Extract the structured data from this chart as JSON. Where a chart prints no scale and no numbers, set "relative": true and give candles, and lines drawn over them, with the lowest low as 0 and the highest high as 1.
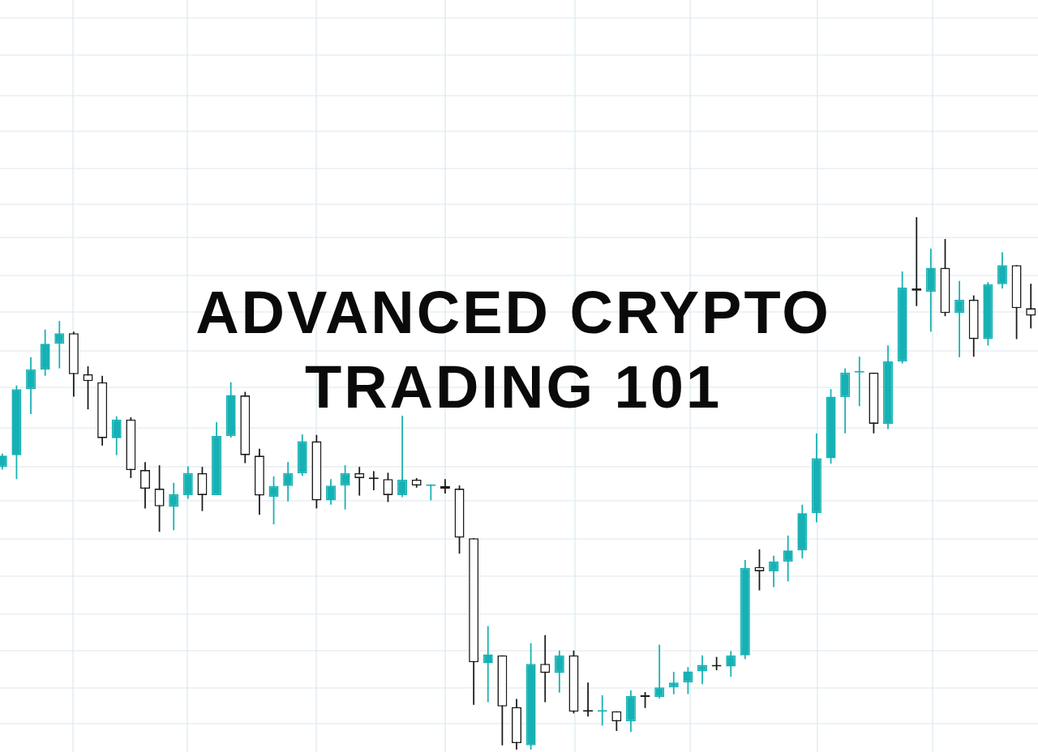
{
  "chart_data": {
    "type": "candlestick",
    "title": "ADVANCED CRYPTO TRADING 101",
    "relative": true,
    "grid": true,
    "legend": false,
    "categories": [
      null,
      null,
      null,
      null,
      null,
      null,
      null,
      null,
      null,
      null,
      null,
      null,
      null,
      null,
      null,
      null,
      null,
      null,
      null,
      null,
      null,
      null,
      null,
      null,
      null,
      null,
      null,
      null,
      null,
      null,
      null,
      null,
      null,
      null,
      null,
      null,
      null,
      null,
      null,
      null,
      null,
      null,
      null,
      null,
      null,
      null,
      null,
      null,
      null,
      null,
      null,
      null,
      null,
      null,
      null,
      null,
      null,
      null,
      null,
      null,
      null,
      null,
      null,
      null,
      null,
      null,
      null,
      null,
      null,
      null,
      null,
      null,
      null
    ],
    "ohlc": [
      [
        0.531,
        0.556,
        0.526,
        0.552
      ],
      [
        0.553,
        0.684,
        0.508,
        0.677
      ],
      [
        0.677,
        0.737,
        0.63,
        0.714
      ],
      [
        0.714,
        0.789,
        0.702,
        0.762
      ],
      [
        0.762,
        0.805,
        0.716,
        0.782
      ],
      [
        0.782,
        0.785,
        0.663,
        0.705
      ],
      [
        0.705,
        0.72,
        0.639,
        0.692
      ],
      [
        0.69,
        0.702,
        0.571,
        0.585
      ],
      [
        0.585,
        0.626,
        0.553,
        0.62
      ],
      [
        0.62,
        0.624,
        0.51,
        0.525
      ],
      [
        0.525,
        0.54,
        0.453,
        0.49
      ],
      [
        0.49,
        0.534,
        0.409,
        0.457
      ],
      [
        0.456,
        0.501,
        0.412,
        0.48
      ],
      [
        0.478,
        0.532,
        0.471,
        0.519
      ],
      [
        0.519,
        0.531,
        0.448,
        0.478
      ],
      [
        0.478,
        0.615,
        0.478,
        0.589
      ],
      [
        0.589,
        0.69,
        0.586,
        0.666
      ],
      [
        0.665,
        0.672,
        0.538,
        0.553
      ],
      [
        0.552,
        0.565,
        0.441,
        0.477
      ],
      [
        0.475,
        0.513,
        0.423,
        0.495
      ],
      [
        0.495,
        0.54,
        0.466,
        0.519
      ],
      [
        0.519,
        0.592,
        0.514,
        0.579
      ],
      [
        0.579,
        0.591,
        0.453,
        0.468
      ],
      [
        0.468,
        0.508,
        0.46,
        0.496
      ],
      [
        0.496,
        0.534,
        0.451,
        0.519
      ],
      [
        0.519,
        0.531,
        0.477,
        0.51
      ],
      [
        0.51,
        0.523,
        0.487,
        0.508
      ],
      [
        0.508,
        0.52,
        0.465,
        0.478
      ],
      [
        0.478,
        0.627,
        0.474,
        0.507
      ],
      [
        0.507,
        0.51,
        0.492,
        0.496
      ],
      [
        0.495,
        0.498,
        0.468,
        0.496
      ],
      [
        0.495,
        0.508,
        0.481,
        0.49
      ],
      [
        0.49,
        0.496,
        0.368,
        0.398
      ],
      [
        0.397,
        0.397,
        0.084,
        0.164
      ],
      [
        0.162,
        0.232,
        0.089,
        0.179
      ],
      [
        0.177,
        0.177,
        0.008,
        0.081
      ],
      [
        0.08,
        0.095,
        0,
        0.012
      ],
      [
        0.008,
        0.2,
        0,
        0.161
      ],
      [
        0.161,
        0.215,
        0.089,
        0.144
      ],
      [
        0.144,
        0.186,
        0.107,
        0.177
      ],
      [
        0.177,
        0.186,
        0.068,
        0.071
      ],
      [
        0.072,
        0.126,
        0.062,
        0.071
      ],
      [
        0.071,
        0.102,
        0.045,
        0.072
      ],
      [
        0.072,
        0.072,
        0.035,
        0.053
      ],
      [
        0.053,
        0.111,
        0.033,
        0.101
      ],
      [
        0.101,
        0.108,
        0.078,
        0.099
      ],
      [
        0.099,
        0.197,
        0.096,
        0.117
      ],
      [
        0.117,
        0.146,
        0.104,
        0.126
      ],
      [
        0.126,
        0.155,
        0.104,
        0.147
      ],
      [
        0.147,
        0.177,
        0.123,
        0.159
      ],
      [
        0.159,
        0.174,
        0.149,
        0.156
      ],
      [
        0.156,
        0.185,
        0.137,
        0.177
      ],
      [
        0.177,
        0.356,
        0.17,
        0.341
      ],
      [
        0.343,
        0.376,
        0.299,
        0.335
      ],
      [
        0.335,
        0.364,
        0.305,
        0.353
      ],
      [
        0.353,
        0.402,
        0.316,
        0.374
      ],
      [
        0.374,
        0.46,
        0.359,
        0.444
      ],
      [
        0.444,
        0.594,
        0.427,
        0.547
      ],
      [
        0.547,
        0.677,
        0.537,
        0.663
      ],
      [
        0.662,
        0.716,
        0.594,
        0.708
      ],
      [
        0.708,
        0.738,
        0.645,
        0.71
      ],
      [
        0.708,
        0.708,
        0.594,
        0.612
      ],
      [
        0.612,
        0.759,
        0.602,
        0.729
      ],
      [
        0.729,
        0.898,
        0.725,
        0.868
      ],
      [
        0.866,
        1,
        0.833,
        0.862
      ],
      [
        0.86,
        0.941,
        0.785,
        0.905
      ],
      [
        0.905,
        0.959,
        0.814,
        0.82
      ],
      [
        0.82,
        0.88,
        0.737,
        0.845
      ],
      [
        0.845,
        0.853,
        0.738,
        0.771
      ],
      [
        0.771,
        0.878,
        0.759,
        0.874
      ],
      [
        0.874,
        0.934,
        0.866,
        0.91
      ],
      [
        0.91,
        0.91,
        0.771,
        0.829
      ],
      [
        0.829,
        0.875,
        0.791,
        0.815
      ]
    ]
  }
}
